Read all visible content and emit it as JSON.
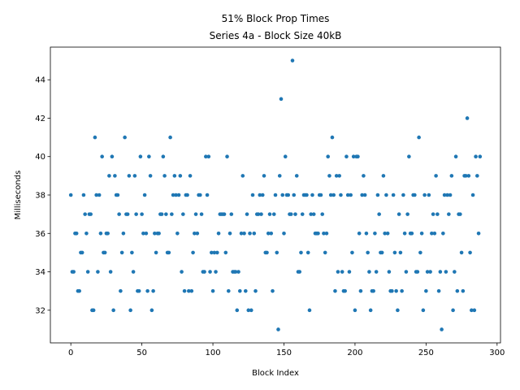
{
  "chart_data": {
    "type": "scatter",
    "title": "51% Block Prop Times",
    "subtitle": "Series 4a - Block Size 40kB",
    "x_label": "Block Index",
    "y_label": "Milliseconds",
    "color": "#1f77b4",
    "xlim": [
      -14.4,
      302.4
    ],
    "ylim": [
      30.3,
      45.7
    ],
    "xticks": [
      0,
      50,
      100,
      150,
      200,
      250,
      300
    ],
    "yticks": [
      32,
      34,
      36,
      38,
      40,
      42,
      44
    ],
    "x": [
      0,
      1,
      2,
      3,
      4,
      5,
      6,
      7,
      8,
      9,
      10,
      11,
      12,
      13,
      14,
      15,
      16,
      17,
      18,
      19,
      20,
      21,
      22,
      23,
      24,
      25,
      26,
      27,
      28,
      29,
      30,
      31,
      32,
      33,
      34,
      35,
      36,
      37,
      38,
      39,
      40,
      41,
      42,
      43,
      44,
      45,
      46,
      47,
      48,
      49,
      50,
      51,
      52,
      53,
      54,
      55,
      56,
      57,
      58,
      59,
      60,
      61,
      62,
      63,
      64,
      65,
      66,
      67,
      68,
      69,
      70,
      71,
      72,
      73,
      74,
      75,
      76,
      77,
      78,
      79,
      80,
      81,
      82,
      83,
      84,
      85,
      86,
      87,
      88,
      89,
      90,
      91,
      92,
      93,
      94,
      95,
      96,
      97,
      98,
      99,
      100,
      101,
      102,
      103,
      104,
      105,
      106,
      107,
      108,
      109,
      110,
      111,
      112,
      113,
      114,
      115,
      116,
      117,
      118,
      119,
      120,
      121,
      122,
      123,
      124,
      125,
      126,
      127,
      128,
      129,
      130,
      131,
      132,
      133,
      134,
      135,
      136,
      137,
      138,
      139,
      140,
      141,
      142,
      143,
      144,
      145,
      146,
      147,
      148,
      149,
      150,
      151,
      152,
      153,
      154,
      155,
      156,
      157,
      158,
      159,
      160,
      161,
      162,
      163,
      164,
      165,
      166,
      167,
      168,
      169,
      170,
      171,
      172,
      173,
      174,
      175,
      176,
      177,
      178,
      179,
      180,
      181,
      182,
      183,
      184,
      185,
      186,
      187,
      188,
      189,
      190,
      191,
      192,
      193,
      194,
      195,
      196,
      197,
      198,
      199,
      200,
      201,
      202,
      203,
      204,
      205,
      206,
      207,
      208,
      209,
      210,
      211,
      212,
      213,
      214,
      215,
      216,
      217,
      218,
      219,
      220,
      221,
      222,
      223,
      224,
      225,
      226,
      227,
      228,
      229,
      230,
      231,
      232,
      233,
      234,
      235,
      236,
      237,
      238,
      239,
      240,
      241,
      242,
      243,
      244,
      245,
      246,
      247,
      248,
      249,
      250,
      251,
      252,
      253,
      254,
      255,
      256,
      257,
      258,
      259,
      260,
      261,
      262,
      263,
      264,
      265,
      266,
      267,
      268,
      269,
      270,
      271,
      272,
      273,
      274,
      275,
      276,
      277,
      278,
      279,
      280,
      281,
      282,
      283,
      284,
      285,
      286,
      287,
      288
    ],
    "y": [
      38,
      34,
      34,
      36,
      36,
      33,
      33,
      35,
      35,
      38,
      37,
      36,
      34,
      37,
      37,
      32,
      32,
      41,
      38,
      34,
      38,
      36,
      40,
      35,
      35,
      36,
      36,
      39,
      34,
      40,
      32,
      39,
      38,
      38,
      37,
      33,
      35,
      36,
      41,
      37,
      37,
      39,
      32,
      35,
      34,
      39,
      37,
      33,
      33,
      40,
      37,
      36,
      38,
      36,
      33,
      40,
      39,
      32,
      33,
      36,
      35,
      36,
      36,
      37,
      37,
      40,
      39,
      37,
      35,
      35,
      41,
      37,
      38,
      39,
      38,
      36,
      38,
      39,
      34,
      37,
      33,
      38,
      38,
      33,
      39,
      33,
      35,
      36,
      37,
      36,
      38,
      38,
      37,
      34,
      34,
      40,
      38,
      40,
      34,
      35,
      33,
      35,
      34,
      35,
      36,
      37,
      37,
      37,
      37,
      35,
      40,
      33,
      36,
      37,
      34,
      34,
      34,
      32,
      34,
      33,
      36,
      39,
      36,
      33,
      37,
      32,
      36,
      32,
      38,
      36,
      33,
      37,
      37,
      38,
      37,
      38,
      39,
      35,
      35,
      36,
      37,
      36,
      33,
      37,
      38,
      35,
      31,
      39,
      43,
      38,
      36,
      40,
      38,
      38,
      37,
      37,
      45,
      38,
      37,
      39,
      34,
      34,
      35,
      37,
      38,
      38,
      38,
      35,
      32,
      37,
      38,
      37,
      36,
      36,
      36,
      38,
      38,
      37,
      36,
      35,
      36,
      40,
      39,
      38,
      41,
      38,
      33,
      39,
      34,
      39,
      38,
      34,
      33,
      33,
      40,
      38,
      34,
      38,
      35,
      40,
      32,
      40,
      40,
      36,
      33,
      38,
      39,
      38,
      36,
      35,
      34,
      32,
      33,
      33,
      36,
      34,
      38,
      37,
      35,
      35,
      39,
      36,
      38,
      36,
      34,
      33,
      33,
      38,
      35,
      33,
      32,
      37,
      35,
      33,
      38,
      36,
      34,
      37,
      40,
      36,
      36,
      38,
      38,
      34,
      34,
      41,
      35,
      36,
      32,
      38,
      33,
      34,
      38,
      34,
      36,
      37,
      36,
      39,
      37,
      33,
      34,
      31,
      36,
      38,
      34,
      38,
      37,
      38,
      39,
      32,
      34,
      40,
      33,
      37,
      37,
      35,
      33,
      39,
      39,
      42,
      39,
      35,
      32,
      38,
      32,
      40,
      39,
      36,
      40
    ]
  }
}
